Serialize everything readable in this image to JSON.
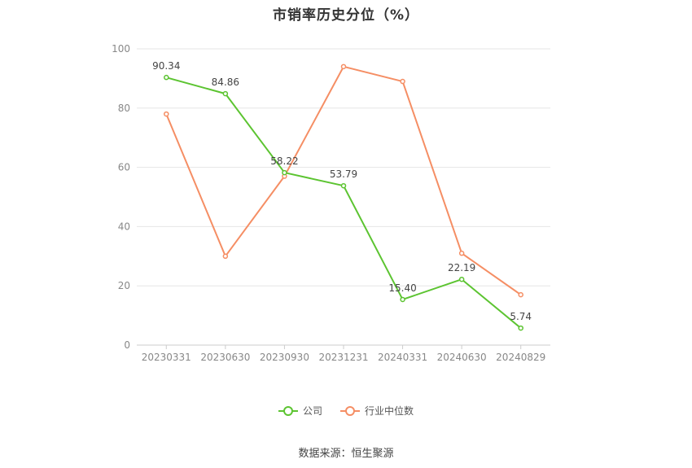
{
  "chart_title": "市销率历史分位（%）",
  "source_text": "数据来源：恒生聚源",
  "colors": {
    "company": "#5cc431",
    "industry": "#f58e64",
    "grid": "#e6e6e6",
    "axis_text": "#888888"
  },
  "legend": [
    {
      "name": "公司",
      "color": "#5cc431"
    },
    {
      "name": "行业中位数",
      "color": "#f58e64"
    }
  ],
  "chart_data": {
    "type": "line",
    "title": "市销率历史分位（%）",
    "categories": [
      "20230331",
      "20230630",
      "20230930",
      "20231231",
      "20240331",
      "20240630",
      "20240829"
    ],
    "ylim": [
      0,
      100
    ],
    "yticks": [
      0,
      20,
      40,
      60,
      80,
      100
    ],
    "grid": true,
    "legend_position": "bottom",
    "series": [
      {
        "name": "公司",
        "values": [
          90.34,
          84.86,
          58.22,
          53.79,
          15.4,
          22.19,
          5.74
        ],
        "labels": [
          "90.34",
          "84.86",
          "58.22",
          "53.79",
          "15.40",
          "22.19",
          "5.74"
        ]
      },
      {
        "name": "行业中位数",
        "values": [
          78,
          30,
          57,
          94,
          89,
          31,
          17
        ]
      }
    ]
  }
}
